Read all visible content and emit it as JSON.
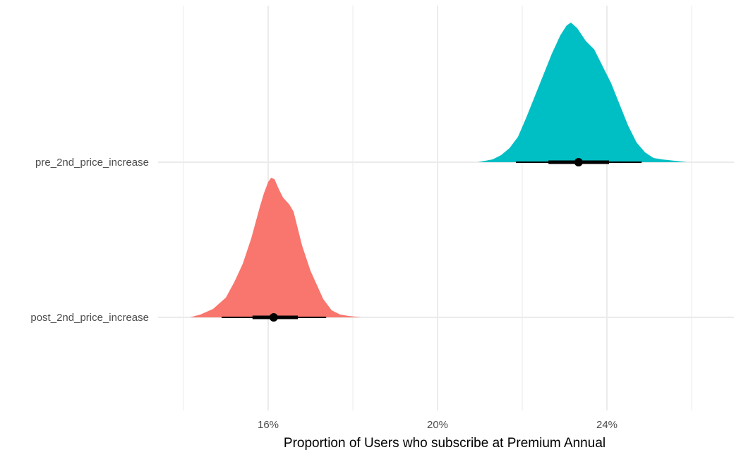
{
  "chart_data": {
    "type": "area",
    "xlabel": "Proportion of Users who subscribe at Premium Annual",
    "ylabel": "",
    "xlim": [
      0.13,
      0.27
    ],
    "x_ticks": [
      {
        "value": 0.16,
        "label": "16%"
      },
      {
        "value": 0.2,
        "label": "20%"
      },
      {
        "value": 0.24,
        "label": "24%"
      }
    ],
    "x_minor_gridlines": [
      0.14,
      0.18,
      0.22,
      0.26
    ],
    "grid": true,
    "legend": "none",
    "series": [
      {
        "name": "post_2nd_price_increase",
        "color": "#F8766D",
        "x": [
          0.1415,
          0.144,
          0.147,
          0.15,
          0.152,
          0.154,
          0.155,
          0.156,
          0.157,
          0.158,
          0.159,
          0.16,
          0.1607,
          0.1615,
          0.1625,
          0.1635,
          0.165,
          0.166,
          0.167,
          0.168,
          0.169,
          0.17,
          0.1715,
          0.173,
          0.175,
          0.177,
          0.179,
          0.182
        ],
        "density": [
          0.0,
          0.02,
          0.06,
          0.14,
          0.25,
          0.38,
          0.47,
          0.56,
          0.67,
          0.78,
          0.88,
          0.96,
          0.99,
          0.98,
          0.91,
          0.85,
          0.8,
          0.75,
          0.63,
          0.51,
          0.42,
          0.33,
          0.23,
          0.13,
          0.05,
          0.02,
          0.01,
          0.0
        ],
        "point": 0.1613,
        "interval_66": [
          0.1563,
          0.167
        ],
        "interval_95": [
          0.149,
          0.1737
        ]
      },
      {
        "name": "pre_2nd_price_increase",
        "color": "#00BFC4",
        "x": [
          0.2095,
          0.213,
          0.215,
          0.217,
          0.219,
          0.221,
          0.223,
          0.225,
          0.227,
          0.229,
          0.2305,
          0.2315,
          0.233,
          0.235,
          0.237,
          0.239,
          0.241,
          0.243,
          0.245,
          0.247,
          0.249,
          0.251,
          0.253,
          0.256,
          0.259
        ],
        "density": [
          0.0,
          0.02,
          0.05,
          0.1,
          0.18,
          0.32,
          0.47,
          0.62,
          0.77,
          0.9,
          0.97,
          0.99,
          0.95,
          0.86,
          0.8,
          0.68,
          0.56,
          0.41,
          0.26,
          0.14,
          0.07,
          0.03,
          0.02,
          0.01,
          0.0
        ],
        "point": 0.2333,
        "interval_66": [
          0.2262,
          0.2405
        ],
        "interval_95": [
          0.2185,
          0.2482
        ]
      }
    ]
  }
}
